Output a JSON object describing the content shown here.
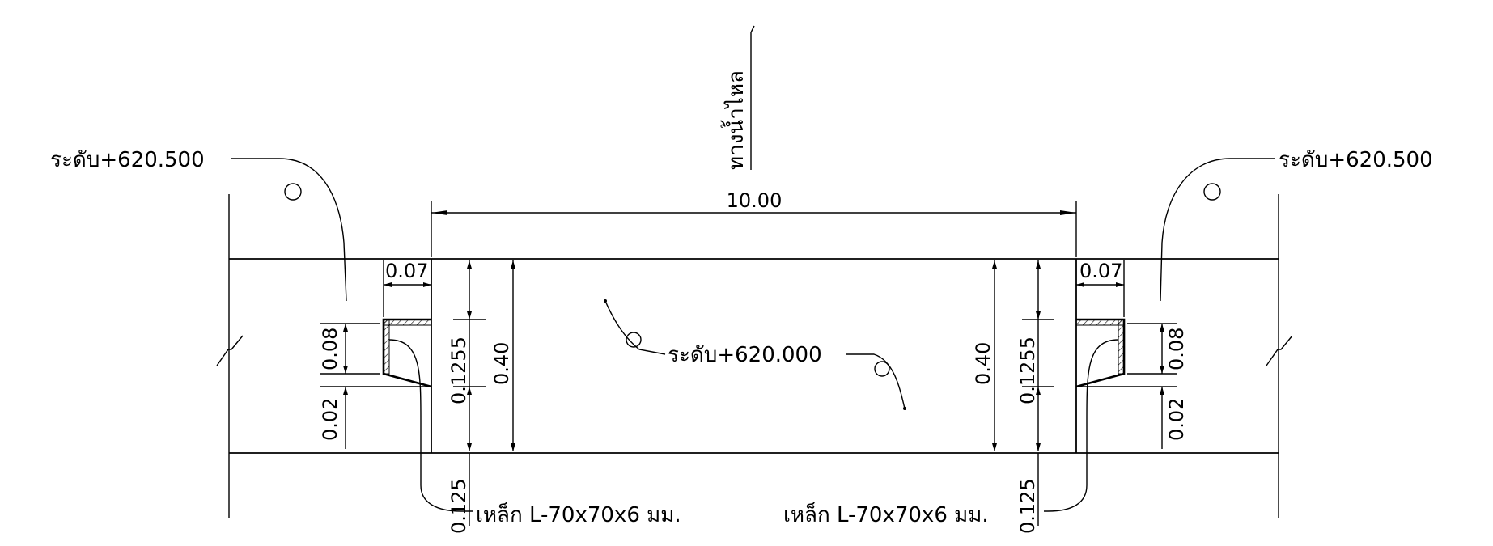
{
  "flow_direction_label": "ทางน้ำไหล",
  "span_dimension": "10.00",
  "left_top_level": "ระดับ+620.500",
  "right_top_level": "ระดับ+620.500",
  "bottom_level": "ระดับ+620.000",
  "left": {
    "top_offset": "0.07",
    "notch_height": "0.08",
    "step_height": "0.02",
    "inner_dims_overlap": "0.1255",
    "depth": "0.40",
    "lower_dim": "0.125",
    "steel_note": "เหล็ก L-70x70x6 มม."
  },
  "right": {
    "top_offset": "0.07",
    "notch_height": "0.08",
    "step_height": "0.02",
    "inner_dims_overlap": "0.1255",
    "depth": "0.40",
    "lower_dim": "0.125",
    "steel_note": "เหล็ก L-70x70x6 มม."
  }
}
